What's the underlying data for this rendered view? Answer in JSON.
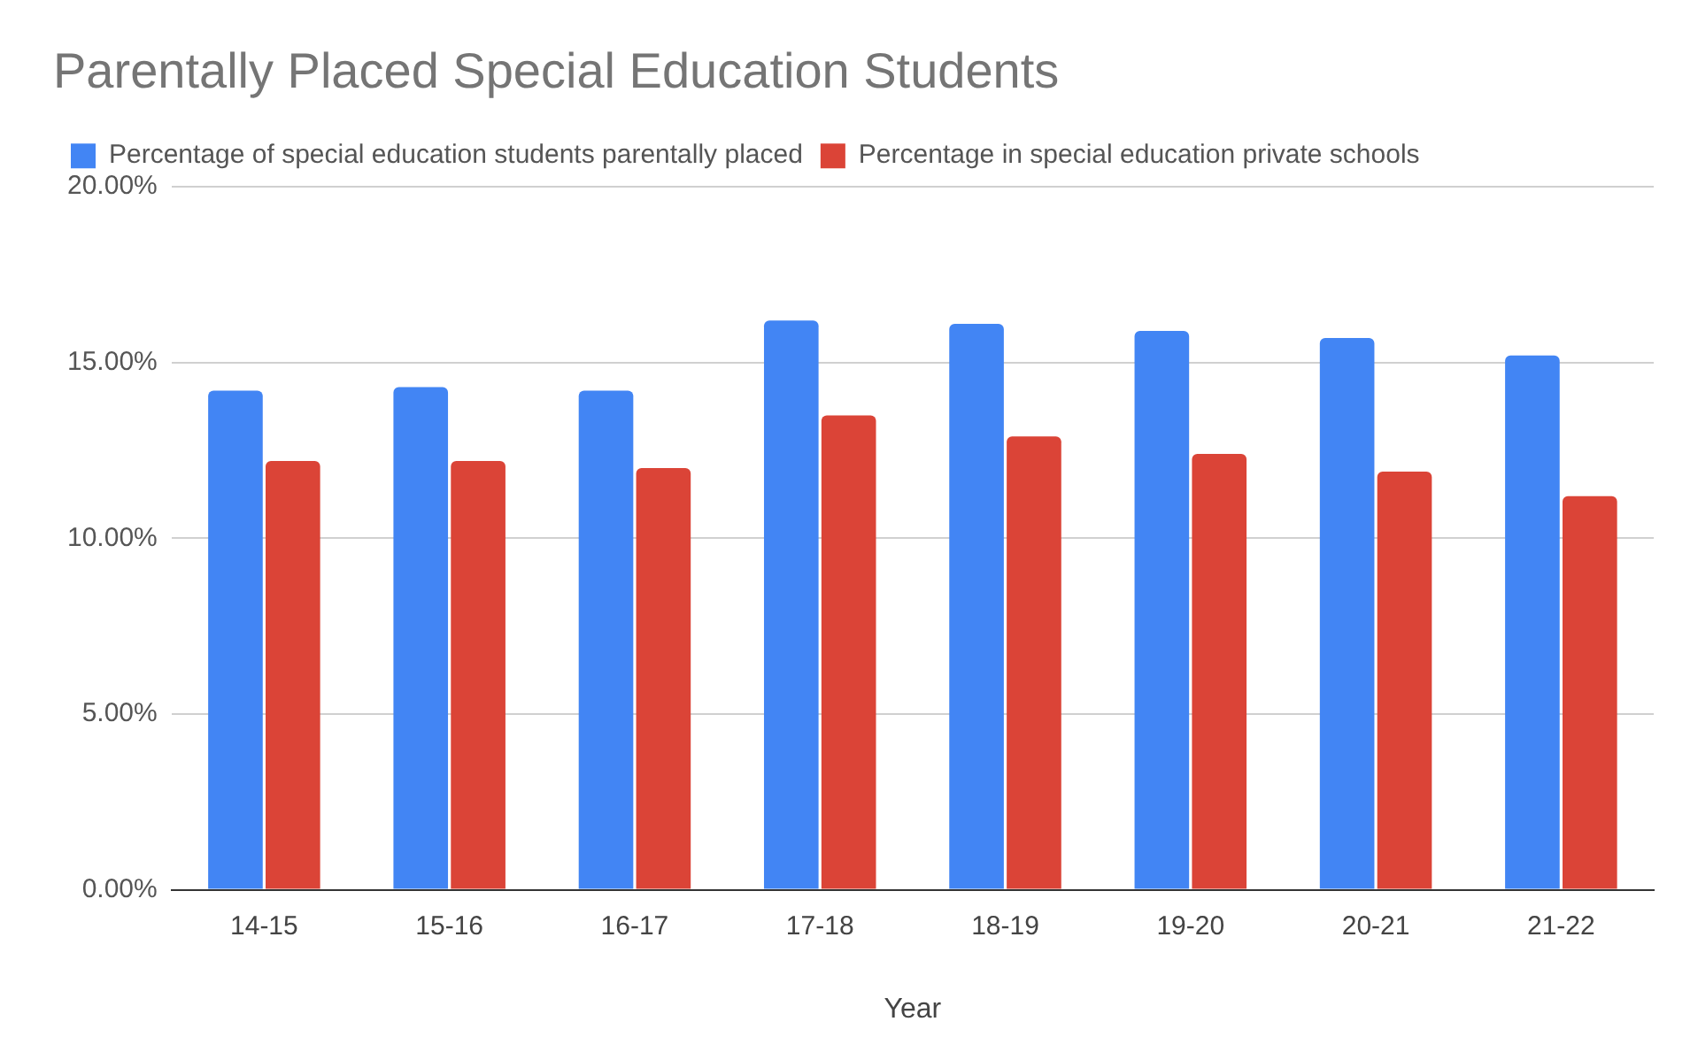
{
  "chart_data": {
    "type": "bar",
    "title": "Parentally Placed Special Education Students",
    "xlabel": "Year",
    "categories": [
      "14-15",
      "15-16",
      "16-17",
      "17-18",
      "18-19",
      "19-20",
      "20-21",
      "21-22"
    ],
    "series": [
      {
        "name": "Percentage of special education students parentally placed",
        "color": "#4285f4",
        "values": [
          14.2,
          14.3,
          14.2,
          16.2,
          16.1,
          15.9,
          15.7,
          15.2
        ]
      },
      {
        "name": "Percentage in special education private schools",
        "color": "#db4437",
        "values": [
          12.2,
          12.2,
          12.0,
          13.5,
          12.9,
          12.4,
          11.9,
          11.2
        ]
      }
    ],
    "ylim": [
      0,
      20
    ],
    "yticks": [
      {
        "value": 0,
        "label": "0.00%"
      },
      {
        "value": 5,
        "label": "5.00%"
      },
      {
        "value": 10,
        "label": "10.00%"
      },
      {
        "value": 15,
        "label": "15.00%"
      },
      {
        "value": 20,
        "label": "20.00%"
      }
    ],
    "grid": "y",
    "legend": "top left"
  }
}
